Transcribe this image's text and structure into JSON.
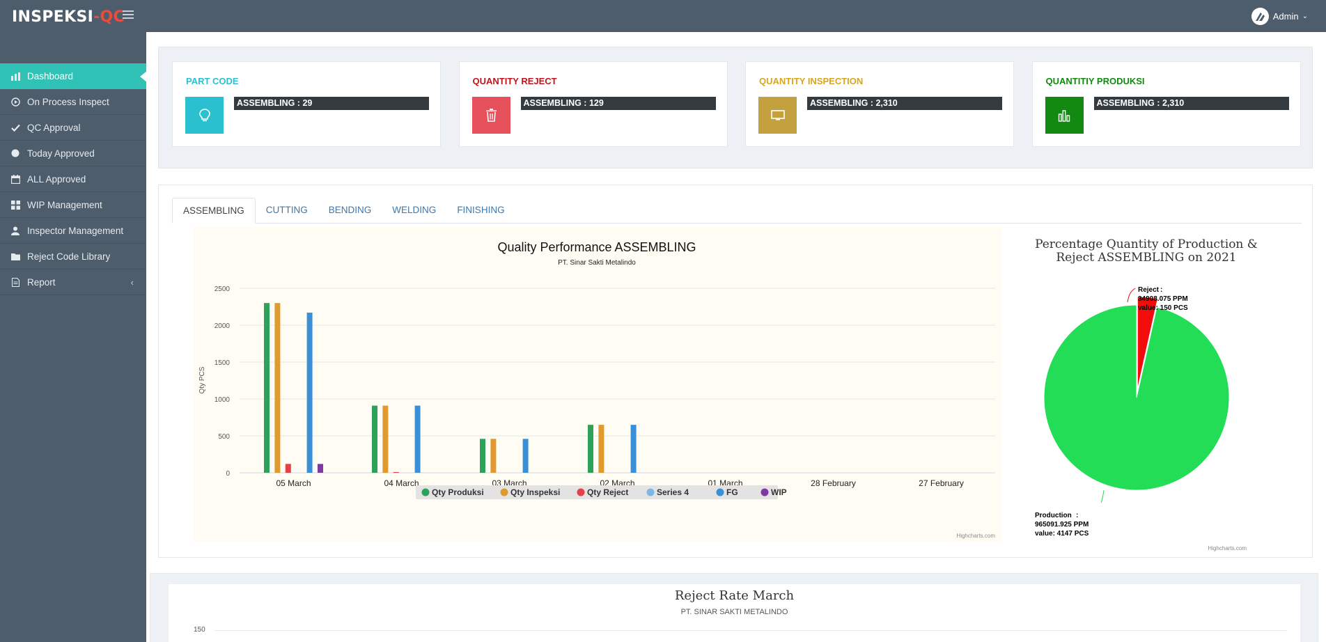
{
  "app": {
    "logo_main": "INSPEKSI",
    "logo_sep": "-",
    "logo_accent": "QC",
    "user": "Admin"
  },
  "sidebar": {
    "items": [
      {
        "label": "Dashboard",
        "icon": "bar-chart-icon",
        "active": true
      },
      {
        "label": "On Process Inspect",
        "icon": "play-circle-icon"
      },
      {
        "label": "QC Approval",
        "icon": "check-icon"
      },
      {
        "label": "Today Approved",
        "icon": "circle-icon"
      },
      {
        "label": "ALL Approved",
        "icon": "calendar-icon"
      },
      {
        "label": "WIP Management",
        "icon": "grid-icon"
      },
      {
        "label": "Inspector Management",
        "icon": "user-icon"
      },
      {
        "label": "Reject Code Library",
        "icon": "folder-icon"
      },
      {
        "label": "Report",
        "icon": "file-icon",
        "arrow": "‹"
      }
    ]
  },
  "stats": [
    {
      "title": "PART CODE",
      "value": "ASSEMBLING : 29",
      "color": "#2bc0d0",
      "icon": "lightbulb-icon"
    },
    {
      "title": "QUANTITY REJECT",
      "value": "ASSEMBLING : 129",
      "color": "#e5505a",
      "title_color": "#c0141c",
      "icon": "trash-icon"
    },
    {
      "title": "QUANTITY INSPECTION",
      "value": "ASSEMBLING : 2,310",
      "color": "#c4a13f",
      "title_color": "#d9a51c",
      "icon": "monitor-icon"
    },
    {
      "title": "QUANTITIY PRODUKSI",
      "value": "ASSEMBLING : 2,310",
      "color": "#128a12",
      "title_color": "#128a12",
      "icon": "bar-chart-icon"
    }
  ],
  "tabs": [
    "ASSEMBLING",
    "CUTTING",
    "BENDING",
    "WELDING",
    "FINISHING"
  ],
  "chart_data": [
    {
      "type": "bar",
      "title": "Quality Performance ASSEMBLING",
      "subtitle": "PT. Sinar Sakti Metalindo",
      "ylabel": "Qty PCS",
      "ylim": [
        0,
        2500
      ],
      "yticks": [
        0,
        500,
        1000,
        1500,
        2000,
        2500
      ],
      "categories": [
        "05 March",
        "04 March",
        "03 March",
        "02 March",
        "01 March",
        "28 February",
        "27 February"
      ],
      "series": [
        {
          "name": "Qty Produksi",
          "color": "#2ea15a",
          "values": [
            2300,
            910,
            460,
            650,
            0,
            0,
            0
          ]
        },
        {
          "name": "Qty Inspeksi",
          "color": "#e09a2f",
          "values": [
            2300,
            910,
            460,
            650,
            0,
            0,
            0
          ]
        },
        {
          "name": "Qty Reject",
          "color": "#e5404a",
          "values": [
            120,
            10,
            0,
            0,
            0,
            0,
            0
          ]
        },
        {
          "name": "Series 4",
          "color": "#7fb6e6",
          "values": [
            0,
            0,
            0,
            0,
            0,
            0,
            0
          ]
        },
        {
          "name": "FG",
          "color": "#3a90d6",
          "values": [
            2170,
            910,
            460,
            650,
            0,
            0,
            0
          ]
        },
        {
          "name": "WIP",
          "color": "#7d3aa0",
          "values": [
            120,
            0,
            0,
            0,
            0,
            0,
            0
          ]
        }
      ],
      "credit": "Highcharts.com"
    },
    {
      "type": "pie",
      "title_line1": "Percentage Quantity of Production &",
      "title_line2": "Reject ASSEMBLING on 2021",
      "slices": [
        {
          "name": "Reject",
          "ppm": "34908.075 PPM",
          "value_label": "value: 150 PCS",
          "value": 150,
          "color": "#f20c0c"
        },
        {
          "name": "Production",
          "ppm": "965091.925 PPM",
          "value_label": "value: 4147 PCS",
          "value": 4147,
          "color": "#22dd55"
        }
      ],
      "credit": "Highcharts.com"
    },
    {
      "type": "line",
      "title": "Reject Rate March",
      "subtitle": "PT. SINAR SAKTI METALINDO",
      "yticks": [
        150
      ]
    }
  ]
}
